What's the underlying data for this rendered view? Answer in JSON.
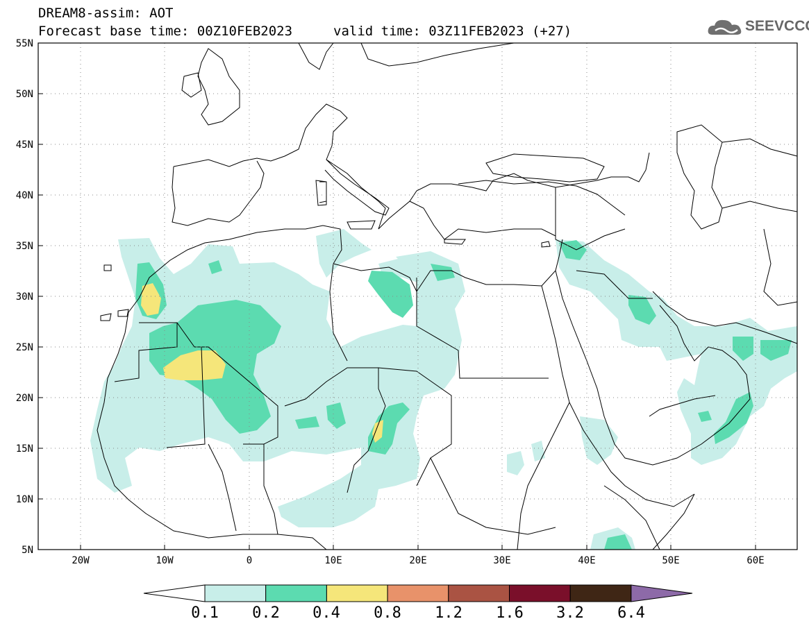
{
  "header": {
    "title_line1": "DREAM8-assim: AOT",
    "title_line2": "Forecast base time: 00Z10FEB2023",
    "valid_time": "valid time: 03Z11FEB2023 (+27)",
    "logo_text": "SEEVCCC"
  },
  "map": {
    "lon_range": [
      -25,
      65
    ],
    "lat_range": [
      5,
      55
    ],
    "lat_labels": [
      "55N",
      "50N",
      "45N",
      "40N",
      "35N",
      "30N",
      "25N",
      "20N",
      "15N",
      "10N",
      "5N"
    ],
    "lon_labels": [
      "20W",
      "10W",
      "0",
      "10E",
      "20E",
      "30E",
      "40E",
      "50E",
      "60E"
    ],
    "grid": "dotted"
  },
  "colorbar": {
    "labels": [
      "0.1",
      "0.2",
      "0.4",
      "0.8",
      "1.2",
      "1.6",
      "3.2",
      "6.4"
    ],
    "colors": [
      "#ffffff",
      "#c8eee9",
      "#5cdbb0",
      "#f5e67a",
      "#e8926a",
      "#aa5343",
      "#7a0f2a",
      "#3f2615",
      "#8d6aa8"
    ]
  }
}
